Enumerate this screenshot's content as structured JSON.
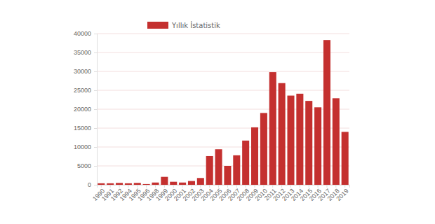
{
  "chart_data": {
    "type": "bar",
    "categories": [
      "1990",
      "1991",
      "1992",
      "1994",
      "1995",
      "1996",
      "1998",
      "1999",
      "2000",
      "2001",
      "2002",
      "2003",
      "2004",
      "2005",
      "2006",
      "2007",
      "2008",
      "2009",
      "2010",
      "2011",
      "2012",
      "2013",
      "2014",
      "2015",
      "2016",
      "2017",
      "2018",
      "2019"
    ],
    "series": [
      {
        "name": "Yıllık İstatistik",
        "color": "#c4302f",
        "values": [
          400,
          400,
          500,
          400,
          500,
          200,
          600,
          2100,
          800,
          600,
          1000,
          1800,
          7600,
          9400,
          5000,
          7800,
          11700,
          15200,
          19000,
          29800,
          26900,
          23600,
          24100,
          22200,
          20500,
          38300,
          22900,
          14000
        ]
      }
    ],
    "ylim": [
      0,
      40000
    ],
    "yticks": [
      0,
      5000,
      10000,
      15000,
      20000,
      25000,
      30000,
      35000,
      40000
    ],
    "grid": true,
    "legend": "top"
  }
}
